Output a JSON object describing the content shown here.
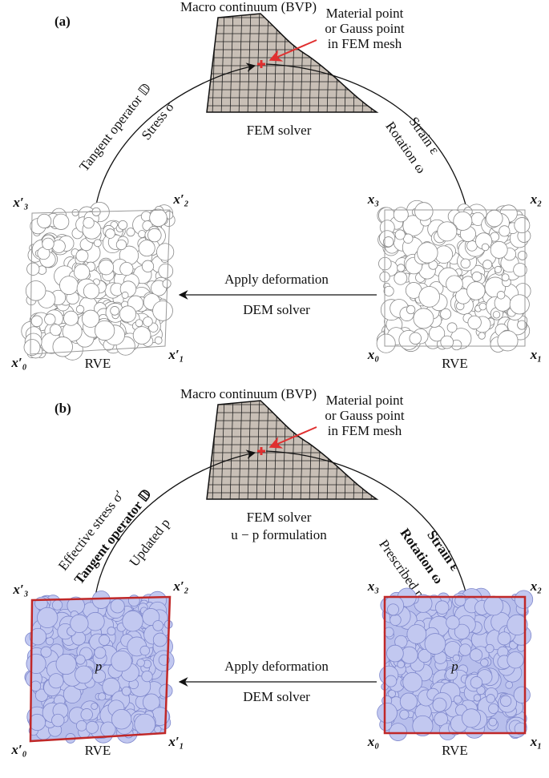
{
  "panels": [
    {
      "label": "(a)",
      "macro_title": "Macro continuum (BVP)",
      "callout": [
        "Material point",
        "or Gauss point",
        "in FEM mesh"
      ],
      "solver": [
        "FEM solver"
      ],
      "up_arrow": [
        "Tangent operator 𝔻",
        "Stress σ"
      ],
      "down_arrow": [
        "Strain ε",
        "Rotation ω"
      ],
      "left_rve": {
        "corners": [
          "x′₃",
          "x′₂",
          "x′₀",
          "x′₁"
        ],
        "label": "RVE"
      },
      "right_rve": {
        "corners": [
          "x₃",
          "x₂",
          "x₀",
          "x₁"
        ],
        "label": "RVE"
      },
      "arrow_top": "Apply deformation",
      "arrow_bottom": "DEM solver"
    },
    {
      "label": "(b)",
      "macro_title": "Macro continuum (BVP)",
      "callout": [
        "Material point",
        "or Gauss point",
        "in FEM mesh"
      ],
      "solver": [
        "FEM solver",
        "u − p formulation"
      ],
      "up_arrow": [
        "Effective stress σ′",
        "Tangent operator 𝔻",
        "Updated p"
      ],
      "down_arrow": [
        "Strain ε",
        "Rotation ω",
        "Prescribed p"
      ],
      "left_rve": {
        "corners": [
          "x′₃",
          "x′₂",
          "x′₀",
          "x′₁"
        ],
        "label": "RVE",
        "pressure": "p"
      },
      "right_rve": {
        "corners": [
          "x₃",
          "x₂",
          "x₀",
          "x₁"
        ],
        "label": "RVE",
        "pressure": "p"
      },
      "arrow_top": "Apply deformation",
      "arrow_bottom": "DEM solver"
    }
  ]
}
